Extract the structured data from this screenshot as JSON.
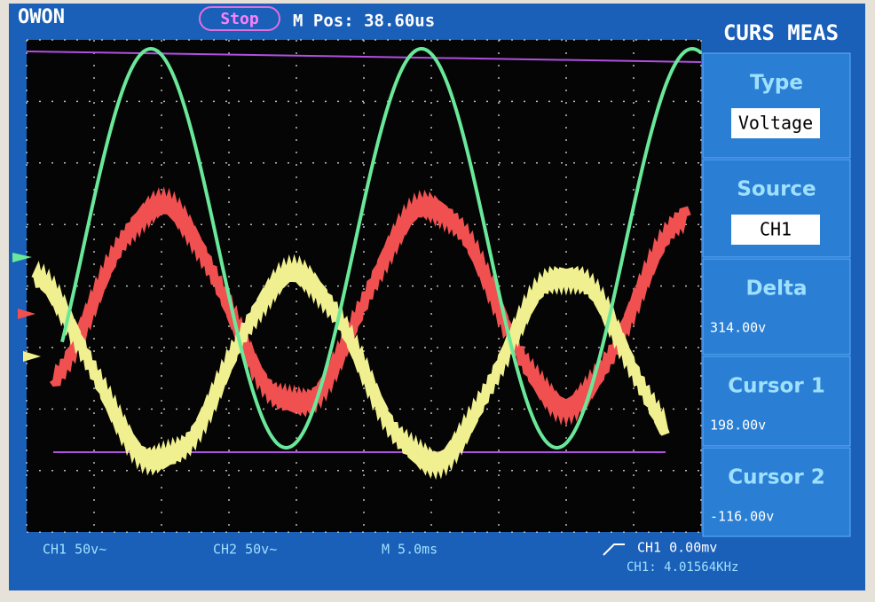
{
  "header": {
    "brand": "OWON",
    "status": "Stop",
    "position": "M Pos: 38.60us",
    "menu_title": "CURS MEAS"
  },
  "menu": [
    {
      "label": "Type",
      "value": "Voltage"
    },
    {
      "label": "Source",
      "value": "CH1"
    },
    {
      "label": "Delta",
      "value": "314.00v"
    },
    {
      "label": "Cursor 1",
      "value": "198.00v"
    },
    {
      "label": "Cursor 2",
      "value": "-116.00v"
    }
  ],
  "footer": {
    "ch1_scale": "CH1 50v~",
    "ch2_scale": "CH2 50v~",
    "time_base": "M 5.0ms",
    "trigger": "CH1 0.00mv",
    "frequency": "CH1: 4.01564KHz"
  }
}
